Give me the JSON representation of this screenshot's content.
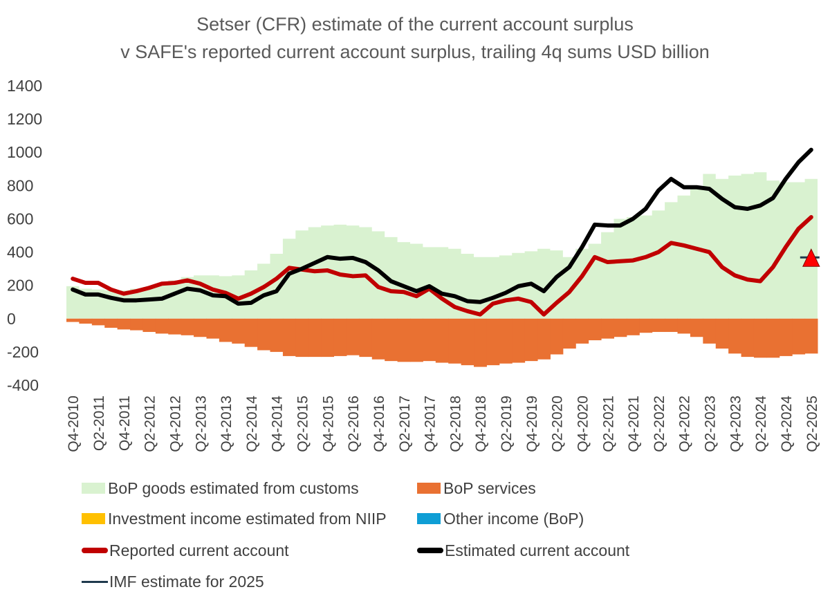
{
  "chart_data": {
    "type": "bar",
    "title": "Setser (CFR) estimate of the current account surplus",
    "subtitle": "v SAFE's reported current account surplus, trailing 4q sums USD billion",
    "xlabel": "",
    "ylabel": "",
    "ylim": [
      -400,
      1400
    ],
    "yticks": [
      1400,
      1200,
      1000,
      800,
      600,
      400,
      200,
      0,
      -200,
      -400
    ],
    "grid": false,
    "legend_position": "bottom",
    "categories": [
      "Q4-2010",
      "Q1-2011",
      "Q2-2011",
      "Q3-2011",
      "Q4-2011",
      "Q1-2012",
      "Q2-2012",
      "Q3-2012",
      "Q4-2012",
      "Q1-2013",
      "Q2-2013",
      "Q3-2013",
      "Q4-2013",
      "Q1-2014",
      "Q2-2014",
      "Q3-2014",
      "Q4-2014",
      "Q1-2015",
      "Q2-2015",
      "Q3-2015",
      "Q4-2015",
      "Q1-2016",
      "Q2-2016",
      "Q3-2016",
      "Q4-2016",
      "Q1-2017",
      "Q2-2017",
      "Q3-2017",
      "Q4-2017",
      "Q1-2018",
      "Q2-2018",
      "Q3-2018",
      "Q4-2018",
      "Q1-2019",
      "Q2-2019",
      "Q3-2019",
      "Q4-2019",
      "Q1-2020",
      "Q2-2020",
      "Q3-2020",
      "Q4-2020",
      "Q1-2021",
      "Q2-2021",
      "Q3-2021",
      "Q4-2021",
      "Q1-2022",
      "Q2-2022",
      "Q3-2022",
      "Q4-2022",
      "Q1-2023",
      "Q2-2023",
      "Q3-2023",
      "Q4-2023",
      "Q1-2024",
      "Q2-2024",
      "Q3-2024",
      "Q4-2024",
      "Q1-2025",
      "Q2-2025"
    ],
    "tick_labels": [
      "Q4-2010",
      "Q2-2011",
      "Q4-2011",
      "Q2-2012",
      "Q4-2012",
      "Q2-2013",
      "Q4-2013",
      "Q2-2014",
      "Q4-2014",
      "Q2-2015",
      "Q4-2015",
      "Q2-2016",
      "Q4-2016",
      "Q2-2017",
      "Q4-2017",
      "Q2-2018",
      "Q4-2018",
      "Q2-2019",
      "Q4-2019",
      "Q2-2020",
      "Q4-2020",
      "Q2-2021",
      "Q4-2021",
      "Q2-2022",
      "Q4-2022",
      "Q2-2023",
      "Q4-2023",
      "Q2-2024",
      "Q4-2024",
      "Q2-2025"
    ],
    "series": [
      {
        "name": "BoP goods estimated from customs",
        "kind": "area",
        "color": "#d9f2d0",
        "values": [
          195,
          180,
          175,
          170,
          170,
          180,
          190,
          210,
          230,
          250,
          260,
          260,
          255,
          260,
          290,
          330,
          390,
          480,
          530,
          550,
          560,
          565,
          560,
          550,
          525,
          490,
          460,
          450,
          430,
          430,
          420,
          390,
          370,
          370,
          380,
          395,
          405,
          420,
          410,
          370,
          420,
          450,
          520,
          600,
          610,
          620,
          650,
          700,
          740,
          790,
          870,
          840,
          860,
          870,
          880,
          830,
          820,
          820,
          840
        ]
      },
      {
        "name": "BoP services",
        "kind": "bar",
        "color": "#e97132",
        "values": [
          -20,
          -30,
          -40,
          -55,
          -65,
          -70,
          -80,
          -90,
          -95,
          -100,
          -110,
          -120,
          -140,
          -150,
          -170,
          -190,
          -200,
          -225,
          -230,
          -230,
          -230,
          -225,
          -220,
          -230,
          -245,
          -255,
          -260,
          -260,
          -255,
          -265,
          -270,
          -280,
          -290,
          -280,
          -270,
          -265,
          -255,
          -245,
          -215,
          -180,
          -150,
          -130,
          -120,
          -110,
          -100,
          -85,
          -80,
          -80,
          -90,
          -110,
          -150,
          -180,
          -210,
          -230,
          -235,
          -235,
          -225,
          -215,
          -210
        ]
      },
      {
        "name": "Investment income estimated from NIIP",
        "kind": "bar",
        "color": "#ffc000",
        "values": [
          0,
          0,
          0,
          0,
          0,
          0,
          0,
          0,
          0,
          0,
          0,
          0,
          0,
          0,
          0,
          0,
          0,
          0,
          0,
          0,
          0,
          0,
          0,
          0,
          0,
          0,
          0,
          0,
          0,
          0,
          0,
          0,
          0,
          0,
          0,
          0,
          0,
          0,
          0,
          0,
          0,
          0,
          0,
          0,
          0,
          0,
          0,
          0,
          0,
          0,
          0,
          0,
          0,
          0,
          0,
          0,
          0,
          0,
          0
        ]
      },
      {
        "name": "Other income (BoP)",
        "kind": "bar",
        "color": "#0f9ed5",
        "values": [
          0,
          0,
          0,
          0,
          0,
          0,
          0,
          0,
          0,
          0,
          0,
          0,
          0,
          0,
          0,
          0,
          0,
          0,
          0,
          0,
          0,
          0,
          0,
          0,
          0,
          0,
          0,
          0,
          0,
          0,
          0,
          0,
          0,
          0,
          0,
          0,
          0,
          0,
          0,
          0,
          0,
          0,
          0,
          0,
          0,
          0,
          0,
          0,
          0,
          0,
          0,
          0,
          0,
          0,
          0,
          0,
          0,
          0,
          0
        ]
      },
      {
        "name": "Reported current account",
        "kind": "line",
        "color": "#c00000",
        "values": [
          240,
          215,
          215,
          175,
          150,
          165,
          185,
          210,
          215,
          230,
          210,
          175,
          155,
          120,
          150,
          190,
          240,
          305,
          295,
          285,
          290,
          265,
          255,
          260,
          190,
          165,
          160,
          135,
          180,
          120,
          70,
          45,
          25,
          90,
          110,
          120,
          100,
          25,
          95,
          160,
          255,
          370,
          340,
          345,
          350,
          370,
          400,
          455,
          440,
          420,
          400,
          310,
          260,
          235,
          225,
          310,
          430,
          540,
          610
        ]
      },
      {
        "name": "Estimated current account",
        "kind": "line",
        "color": "#000000",
        "values": [
          175,
          145,
          145,
          125,
          110,
          110,
          115,
          120,
          150,
          180,
          170,
          140,
          135,
          90,
          95,
          140,
          165,
          270,
          300,
          335,
          370,
          360,
          365,
          340,
          290,
          225,
          195,
          165,
          195,
          150,
          135,
          105,
          100,
          125,
          155,
          195,
          210,
          165,
          250,
          310,
          430,
          565,
          560,
          560,
          600,
          660,
          770,
          840,
          790,
          790,
          780,
          720,
          670,
          660,
          680,
          725,
          840,
          940,
          1015
        ]
      },
      {
        "name": "IMF estimate for 2025",
        "kind": "marker",
        "color": "#1f3a4d",
        "x": "Q2-2025",
        "value": 368
      }
    ]
  },
  "legend": [
    {
      "label": "BoP goods estimated from customs",
      "color": "#d9f2d0",
      "style": "box"
    },
    {
      "label": "BoP services",
      "color": "#e97132",
      "style": "box"
    },
    {
      "label": "Investment income estimated from NIIP",
      "color": "#ffc000",
      "style": "box"
    },
    {
      "label": "Other income (BoP)",
      "color": "#0f9ed5",
      "style": "box"
    },
    {
      "label": "Reported current account",
      "color": "#c00000",
      "style": "line"
    },
    {
      "label": "Estimated current account",
      "color": "#000000",
      "style": "line"
    },
    {
      "label": "IMF estimate for 2025",
      "color": "#1f3a4d",
      "style": "thin"
    }
  ]
}
